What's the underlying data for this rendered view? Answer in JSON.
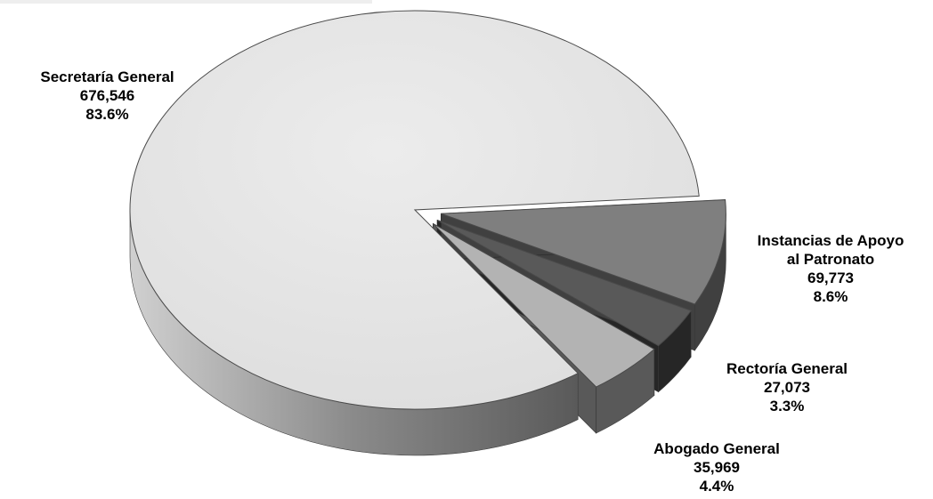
{
  "chart_data": {
    "type": "pie",
    "title": "",
    "slices": [
      {
        "name": "Secretaría General",
        "label_lines": [
          "Secretaría General"
        ],
        "value": 676546,
        "value_text": "676,546",
        "percent": 83.6,
        "percent_text": "83.6%",
        "color": "#e6e6e6",
        "side_color": "#8c8c8c",
        "exploded": false
      },
      {
        "name": "Instancias de Apoyo al Patronato",
        "label_lines": [
          "Instancias de Apoyo",
          "al Patronato"
        ],
        "value": 69773,
        "value_text": "69,773",
        "percent": 8.6,
        "percent_text": "8.6%",
        "color": "#7f7f7f",
        "side_color": "#404040",
        "exploded": true
      },
      {
        "name": "Rectoría General",
        "label_lines": [
          "Rectoría General"
        ],
        "value": 27073,
        "value_text": "27,073",
        "percent": 3.3,
        "percent_text": "3.3%",
        "color": "#595959",
        "side_color": "#262626",
        "exploded": true
      },
      {
        "name": "Abogado General",
        "label_lines": [
          "Abogado General"
        ],
        "value": 35969,
        "value_text": "35,969",
        "percent": 4.4,
        "percent_text": "4.4%",
        "color": "#b3b3b3",
        "side_color": "#595959",
        "exploded": true
      }
    ],
    "style": "3d-exploded",
    "legend": "none"
  }
}
